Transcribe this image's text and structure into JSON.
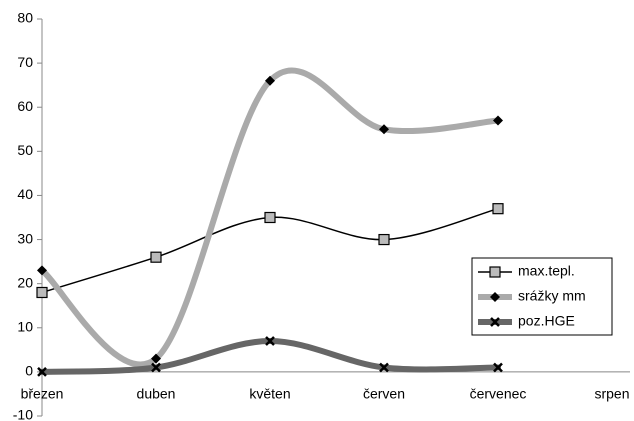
{
  "chart_data": {
    "type": "line",
    "categories": [
      "březen",
      "duben",
      "květen",
      "červen",
      "červenec",
      "srpen"
    ],
    "series": [
      {
        "name": "max.tepl.",
        "color": "#000000",
        "marker_color": "#bbbbbb",
        "marker": "square",
        "values": [
          18,
          26,
          35,
          30,
          37,
          null
        ]
      },
      {
        "name": "srážky mm",
        "color": "#aaaaaa",
        "marker_color": "#000000",
        "marker": "diamond",
        "values": [
          23,
          3,
          66,
          55,
          57,
          null
        ]
      },
      {
        "name": "poz.HGE",
        "color": "#666666",
        "marker_color": "#000000",
        "marker": "x",
        "values": [
          0,
          1,
          7,
          1,
          1,
          null
        ]
      }
    ],
    "ylim": [
      -10,
      80
    ],
    "yticks": [
      -10,
      0,
      10,
      20,
      30,
      40,
      50,
      60,
      70,
      80
    ],
    "smooth": true,
    "legend": "right"
  }
}
